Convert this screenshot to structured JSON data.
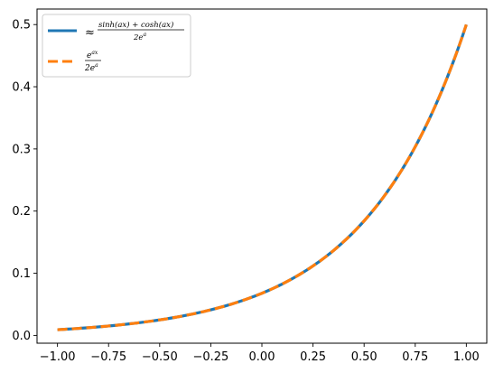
{
  "chart_data": {
    "type": "line",
    "title": "",
    "xlabel": "",
    "ylabel": "",
    "xlim": [
      -1.1,
      1.1
    ],
    "ylim": [
      -0.0125,
      0.525
    ],
    "xticks": [
      -1.0,
      -0.75,
      -0.5,
      -0.25,
      0.0,
      0.25,
      0.5,
      0.75,
      1.0
    ],
    "xtick_labels": [
      "−1.00",
      "−0.75",
      "−0.50",
      "−0.25",
      "0.00",
      "0.25",
      "0.50",
      "0.75",
      "1.00"
    ],
    "yticks": [
      0.0,
      0.1,
      0.2,
      0.3,
      0.4,
      0.5
    ],
    "ytick_labels": [
      "0.0",
      "0.1",
      "0.2",
      "0.3",
      "0.4",
      "0.5"
    ],
    "grid": false,
    "legend_position": "top-left",
    "x": [
      -1.0,
      -0.9,
      -0.8,
      -0.7,
      -0.6,
      -0.5,
      -0.4,
      -0.3,
      -0.2,
      -0.1,
      0.0,
      0.1,
      0.2,
      0.3,
      0.4,
      0.5,
      0.6,
      0.7,
      0.8,
      0.9,
      1.0
    ],
    "series": [
      {
        "color": "#1f77b4",
        "style": "solid",
        "values": [
          0.0092,
          0.0112,
          0.0137,
          0.0167,
          0.0202,
          0.0247,
          0.0301,
          0.0368,
          0.0449,
          0.0548,
          0.0669,
          0.0817,
          0.0998,
          0.1219,
          0.1488,
          0.1817,
          0.2219,
          0.271,
          0.3309,
          0.4041,
          0.5
        ]
      },
      {
        "color": "#ff7f0e",
        "style": "dashed",
        "values": [
          0.0092,
          0.0112,
          0.0137,
          0.0167,
          0.0202,
          0.0247,
          0.0301,
          0.0368,
          0.0449,
          0.0548,
          0.0669,
          0.0817,
          0.0998,
          0.1219,
          0.1488,
          0.1817,
          0.2219,
          0.271,
          0.3309,
          0.4041,
          0.5
        ]
      }
    ],
    "legend": [
      {
        "prefix": "≈",
        "numerator": "sinh(ax) + cosh(ax)",
        "denominator_base": "2e",
        "denominator_sup": "a"
      },
      {
        "prefix": "",
        "numerator_base": "e",
        "numerator_sup": "ax",
        "denominator_base": "2e",
        "denominator_sup": "a"
      }
    ]
  }
}
